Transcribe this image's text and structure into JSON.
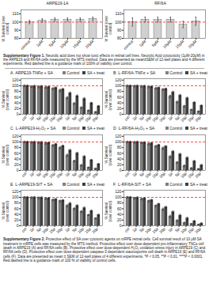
{
  "chart_data": [
    {
      "type": "bar",
      "title": "ARPE19-1A",
      "categories": [
        "control",
        "1μM",
        "5μM",
        "10μM",
        "15μM",
        "20μM"
      ],
      "values": [
        100,
        102,
        103,
        103,
        103,
        104
      ],
      "errors": [
        2,
        2,
        2,
        2,
        2,
        2
      ],
      "color": "#d0d0d0",
      "error_color": "#000000",
      "ylabel": "% Survival (over\ncontrol)",
      "ylim": [
        80,
        115
      ],
      "yticks": [
        80,
        90,
        100,
        110
      ],
      "reference_line": {
        "y": 100,
        "color": "#ff0000",
        "line_style": "dashed"
      }
    },
    {
      "type": "bar",
      "title": "RF/6A",
      "categories": [
        "control",
        "1μM",
        "5μM",
        "10μM",
        "15μM",
        "20μM"
      ],
      "values": [
        100,
        103,
        103,
        103,
        97,
        101
      ],
      "errors": [
        5,
        3,
        3,
        3,
        4,
        5
      ],
      "color": "#d0d0d0",
      "error_color": "#000000",
      "ylabel": "% Survival (over\ncontrol)",
      "ylim": [
        80,
        115
      ],
      "yticks": [
        80,
        90,
        100,
        110
      ],
      "reference_line": {
        "y": 100,
        "color": "#ff0000",
        "line_style": "dashed"
      }
    },
    {
      "type": "bar",
      "title": "A",
      "subtitle": "ARPE19-TNFα + SA",
      "categories": [
        "ctrl",
        "1μ",
        "5μ",
        "10μ",
        "15μ",
        "20μ",
        "1μ",
        "5μ",
        "10μ",
        "15μ",
        "20μ"
      ],
      "series": [
        {
          "name": "Control",
          "color": "#808080",
          "values": [
            100,
            97,
            96,
            94,
            90,
            84,
            58,
            38,
            23,
            13,
            8
          ],
          "errors": [
            3,
            3,
            3,
            3,
            3,
            4,
            4,
            3,
            3,
            2,
            2
          ]
        },
        {
          "name": "SA + treat",
          "color": "#404040",
          "values": [
            100,
            99,
            98,
            96,
            93,
            88,
            74,
            64,
            54,
            39,
            28
          ],
          "errors": [
            3,
            3,
            3,
            3,
            3,
            3,
            4,
            4,
            4,
            3,
            3
          ]
        }
      ],
      "error_color": "#000000",
      "ylabel": "% Survival\n(over control)",
      "ylim": [
        0,
        125
      ],
      "yticks": [
        0,
        20,
        40,
        60,
        80,
        100,
        120
      ],
      "legend": "upper right",
      "reference_line": {
        "y": 100,
        "color": "#ff0000",
        "line_style": "dashed"
      }
    },
    {
      "type": "bar",
      "title": "B",
      "subtitle": "L-RF/6A-TNFα + SA",
      "categories": [
        "ctrl",
        "1μ",
        "5μ",
        "10μ",
        "15μ",
        "20μ",
        "1μ",
        "5μ",
        "10μ",
        "15μ",
        "20μ"
      ],
      "series": [
        {
          "name": "Control",
          "color": "#808080",
          "values": [
            100,
            99,
            98,
            96,
            91,
            87,
            63,
            43,
            28,
            16,
            10
          ],
          "errors": [
            3,
            3,
            3,
            3,
            3,
            3,
            4,
            3,
            3,
            2,
            2
          ]
        },
        {
          "name": "SA + treat",
          "color": "#404040",
          "values": [
            100,
            100,
            99,
            97,
            93,
            89,
            77,
            66,
            56,
            41,
            30
          ],
          "errors": [
            3,
            3,
            3,
            3,
            3,
            3,
            4,
            4,
            4,
            3,
            3
          ]
        }
      ],
      "error_color": "#000000",
      "ylabel": "% Survival\n(over control)",
      "ylim": [
        0,
        125
      ],
      "yticks": [
        0,
        20,
        40,
        60,
        80,
        100,
        120
      ],
      "legend": "upper right",
      "reference_line": {
        "y": 100,
        "color": "#ff0000",
        "line_style": "dashed"
      }
    },
    {
      "type": "bar",
      "title": "C",
      "subtitle": "L-ARPE19-H₂O₂ + SA",
      "categories": [
        "ctrl",
        "1μ",
        "5μ",
        "10μ",
        "15μ",
        "20μ",
        "1μ",
        "5μ",
        "10μ",
        "15μ",
        "20μ"
      ],
      "series": [
        {
          "name": "Control",
          "color": "#808080",
          "values": [
            100,
            99,
            98,
            95,
            88,
            80,
            53,
            33,
            18,
            10,
            6
          ],
          "errors": [
            3,
            3,
            3,
            3,
            3,
            4,
            4,
            3,
            3,
            2,
            2
          ]
        },
        {
          "name": "SA + treat",
          "color": "#404040",
          "values": [
            100,
            100,
            99,
            97,
            92,
            86,
            70,
            60,
            48,
            36,
            22
          ],
          "errors": [
            3,
            3,
            3,
            3,
            3,
            3,
            4,
            4,
            4,
            3,
            3
          ]
        }
      ],
      "error_color": "#000000",
      "ylabel": "% Survival\n(over control)",
      "ylim": [
        0,
        125
      ],
      "yticks": [
        0,
        20,
        40,
        60,
        80,
        100,
        120
      ],
      "legend": "upper right",
      "reference_line": {
        "y": 100,
        "color": "#ff0000",
        "line_style": "dashed"
      }
    },
    {
      "type": "bar",
      "title": "D",
      "subtitle": "L-RF/6A-H₂O₂ + SA",
      "categories": [
        "ctrl",
        "1μ",
        "5μ",
        "10μ",
        "15μ",
        "20μ",
        "1μ",
        "5μ",
        "10μ",
        "15μ",
        "20μ"
      ],
      "series": [
        {
          "name": "Control",
          "color": "#808080",
          "values": [
            100,
            99,
            97,
            93,
            85,
            78,
            48,
            28,
            16,
            8,
            5
          ],
          "errors": [
            3,
            3,
            3,
            3,
            3,
            4,
            4,
            3,
            3,
            2,
            2
          ]
        },
        {
          "name": "SA + treat",
          "color": "#404040",
          "values": [
            100,
            100,
            98,
            95,
            89,
            84,
            66,
            56,
            44,
            32,
            18
          ],
          "errors": [
            3,
            3,
            3,
            3,
            3,
            3,
            4,
            4,
            4,
            3,
            3
          ]
        }
      ],
      "error_color": "#000000",
      "ylabel": "% Survival\n(over control)",
      "ylim": [
        0,
        125
      ],
      "yticks": [
        0,
        20,
        40,
        60,
        80,
        100,
        120
      ],
      "legend": "upper right",
      "reference_line": {
        "y": 100,
        "color": "#ff0000",
        "line_style": "dashed"
      }
    },
    {
      "type": "bar",
      "title": "E",
      "subtitle": "L-ARPE19-SIT + SA",
      "categories": [
        "ctrl",
        "1μ",
        "5μ",
        "10μ",
        "15μ",
        "20μ",
        "1μ",
        "5μ",
        "10μ",
        "15μ",
        "20μ"
      ],
      "series": [
        {
          "name": "Control",
          "color": "#808080",
          "values": [
            100,
            99,
            98,
            95,
            91,
            87,
            70,
            60,
            50,
            38,
            26
          ],
          "errors": [
            3,
            3,
            3,
            3,
            3,
            3,
            4,
            3,
            3,
            2,
            2
          ]
        },
        {
          "name": "SA + treat",
          "color": "#404040",
          "values": [
            100,
            100,
            99,
            97,
            93,
            89,
            78,
            70,
            62,
            52,
            38
          ],
          "errors": [
            3,
            3,
            3,
            3,
            3,
            3,
            4,
            4,
            4,
            3,
            3
          ]
        }
      ],
      "error_color": "#000000",
      "ylabel": "% Survival\n(over control)",
      "ylim": [
        0,
        125
      ],
      "yticks": [
        0,
        20,
        40,
        60,
        80,
        100,
        120
      ],
      "legend": "upper right",
      "reference_line": {
        "y": 100,
        "color": "#ff0000",
        "line_style": "dashed"
      }
    },
    {
      "type": "bar",
      "title": "F",
      "subtitle": "L-RF/6A-SIT + SA",
      "categories": [
        "ctrl",
        "1μ",
        "5μ",
        "10μ",
        "15μ",
        "20μ",
        "1μ",
        "5μ",
        "10μ",
        "15μ",
        "20μ"
      ],
      "series": [
        {
          "name": "Control",
          "color": "#808080",
          "values": [
            100,
            97,
            94,
            87,
            70,
            58,
            33,
            18,
            10,
            6,
            4
          ],
          "errors": [
            3,
            3,
            3,
            3,
            3,
            4,
            4,
            3,
            3,
            2,
            2
          ]
        },
        {
          "name": "SA + treat",
          "color": "#404040",
          "values": [
            100,
            99,
            96,
            90,
            76,
            65,
            48,
            36,
            26,
            16,
            8
          ],
          "errors": [
            3,
            3,
            3,
            3,
            3,
            3,
            4,
            4,
            4,
            3,
            3
          ]
        }
      ],
      "error_color": "#000000",
      "ylabel": "% Survival\n(over control)",
      "ylim": [
        0,
        125
      ],
      "yticks": [
        0,
        20,
        40,
        60,
        80,
        100,
        120
      ],
      "legend": "upper right",
      "reference_line": {
        "y": 100,
        "color": "#ff0000",
        "line_style": "dashed"
      }
    }
  ],
  "annotations": [
    {
      "title": "Supplementary Figure 1.",
      "text": "Neurolic acid does not show toxic effects in retinal cell lines.  Neurolic Acid cytotoxicity (1μM-20μM) in the ARPE19 and RF/6A cells measured by the MTS method. Data are presented as mean±SEM of 12-well plates and 4 different experiments. Red dashed line is a guidance mark of 100% of viability over control."
    },
    {
      "title": "Supplementary Figure 2.",
      "text": "Protective effect of SA over cytotoxic agents on mRPE retinal cells. Cell survival result of 10 μM SA treatment in mRPE cells was measured by the MTS method. Protective effect over dose-dependent pro-inflammatory TNCs cell death in ARPE19 (A) and RF/6A cells (B). Protective effect over dose-dependent H₂O₂ oxidation stress injury in ARPE19 (C) and RF/6A cells (D). Protective effect over dose-dependent caspase-3 dependent staurosporine cell death in ARPE19 (E) and RF/6A cells (F). Data are presented as mean ± SEM of 12-well plates of 4 different experiments. *P < 0.05, **P < 0.01, ****P < 0.0001. Red dashed line is a guidance mark of 100 % of viability of control cells."
    }
  ]
}
